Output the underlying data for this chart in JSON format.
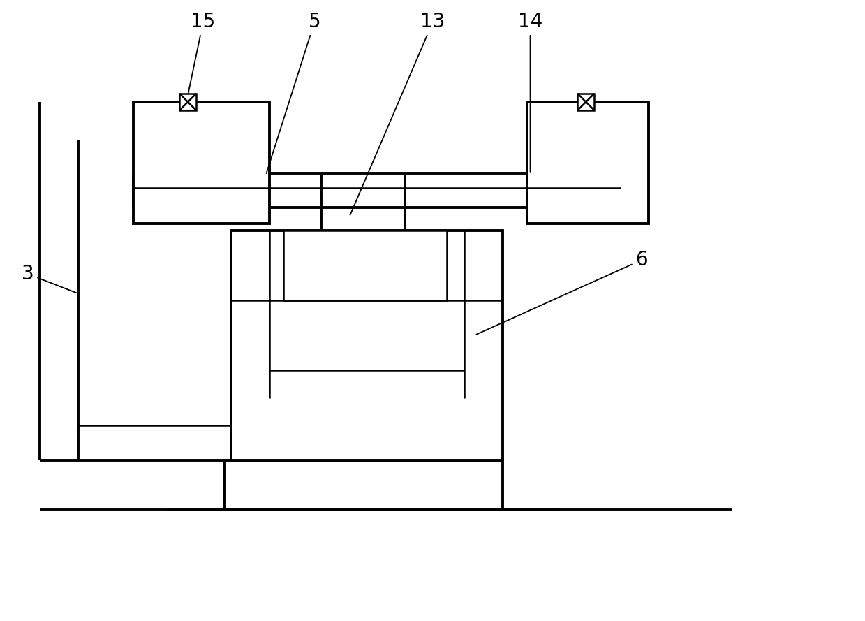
{
  "bg_color": "#ffffff",
  "line_color": "#000000",
  "lw": 1.8,
  "lw2": 2.8,
  "figsize": [
    12.39,
    8.89
  ],
  "dpi": 100
}
